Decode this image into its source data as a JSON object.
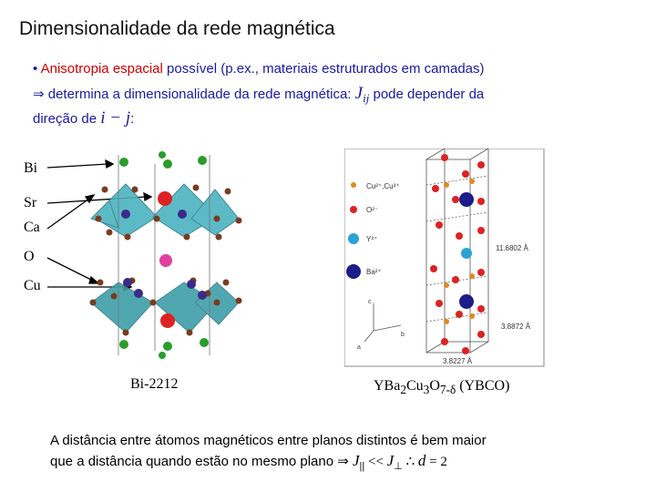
{
  "title": "Dimensionalidade da rede magnética",
  "bullet": {
    "marker": "•",
    "part1": "Anisotropia espacial",
    "part2": "possível (p.ex., materiais estruturados em camadas)"
  },
  "line2": {
    "arrow": "⇒",
    "text": "determina a dimensionalidade da rede magnética:",
    "symbol": "J",
    "subscript": "ij",
    "text2": "pode depender da"
  },
  "line3": {
    "text": "direção de",
    "expr": "i − j",
    "colon": ":"
  },
  "left_labels": [
    "Bi",
    "Sr",
    "Ca",
    "O",
    "Cu"
  ],
  "left_caption": "Bi-2212",
  "right_caption": {
    "prefix": "YBa",
    "s1": "2",
    "mid": "Cu",
    "s2": "3",
    "o": "O",
    "s3": "7-δ",
    "suffix": " (YBCO)"
  },
  "right_legend": [
    {
      "label": "Cu²⁺,Cu³⁺",
      "color": "#e08a20"
    },
    {
      "label": "O²⁻",
      "color": "#dd2222"
    },
    {
      "label": "Y³⁺",
      "color": "#29a3d6"
    },
    {
      "label": "Ba²⁺",
      "color": "#1c1c8a"
    }
  ],
  "right_dims": [
    "11.6802 Å",
    "3.8872 Å",
    "3.8227 Å"
  ],
  "axes": [
    "c",
    "b",
    "a"
  ],
  "bottom": {
    "line1": "A distância entre átomos magnéticos entre planos distintos é bem maior",
    "line2": "que a distância quando estão no mesmo plano",
    "arrow": "⇒",
    "j1": "J",
    "j1sub": "||",
    "lt": " << ",
    "j2": "J",
    "j2sub": "⊥",
    "therefore": " ∴ ",
    "d": "d",
    "eq": " = 2"
  },
  "colors": {
    "title": "#111111",
    "text_blue": "#1a1aa0",
    "text_red": "#cc0000",
    "polyhedra": "#4bb3c0",
    "sr": "#dd2222",
    "bi": "#2a9d2a",
    "cu": "#3a2a8a",
    "o": "#7a3b1f",
    "ca": "#e040a0"
  }
}
